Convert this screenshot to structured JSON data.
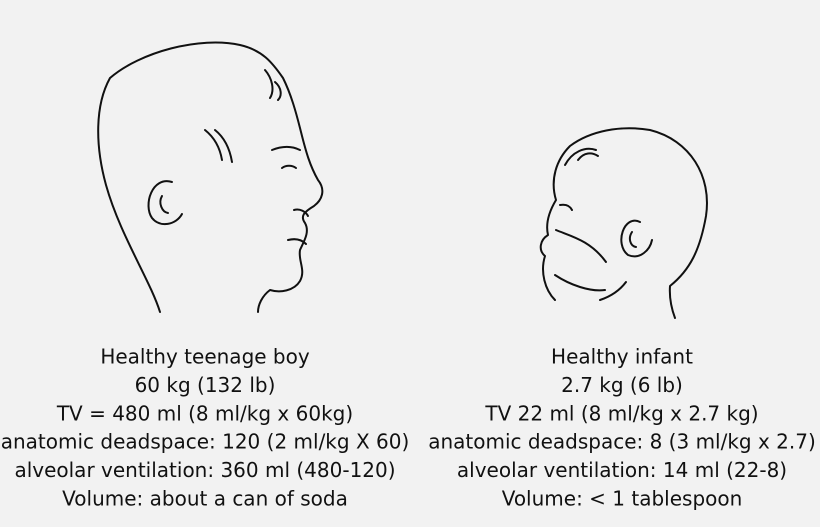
{
  "panels": [
    {
      "lines": [
        "Healthy teenage boy",
        "60 kg (132 lb)",
        "TV = 480 ml (8 ml/kg x 60kg)",
        "anatomic deadspace: 120 (2 ml/kg X 60)",
        "alveolar ventilation: 360 ml (480-120)",
        "Volume: about a can of soda"
      ]
    },
    {
      "lines": [
        "Healthy infant",
        "2.7 kg (6 lb)",
        "TV 22 ml (8 ml/kg x 2.7 kg)",
        "anatomic deadspace: 8 (3 ml/kg x 2.7)",
        "alveolar ventilation: 14 ml (22-8)",
        "Volume: < 1 tablespoon"
      ]
    }
  ]
}
